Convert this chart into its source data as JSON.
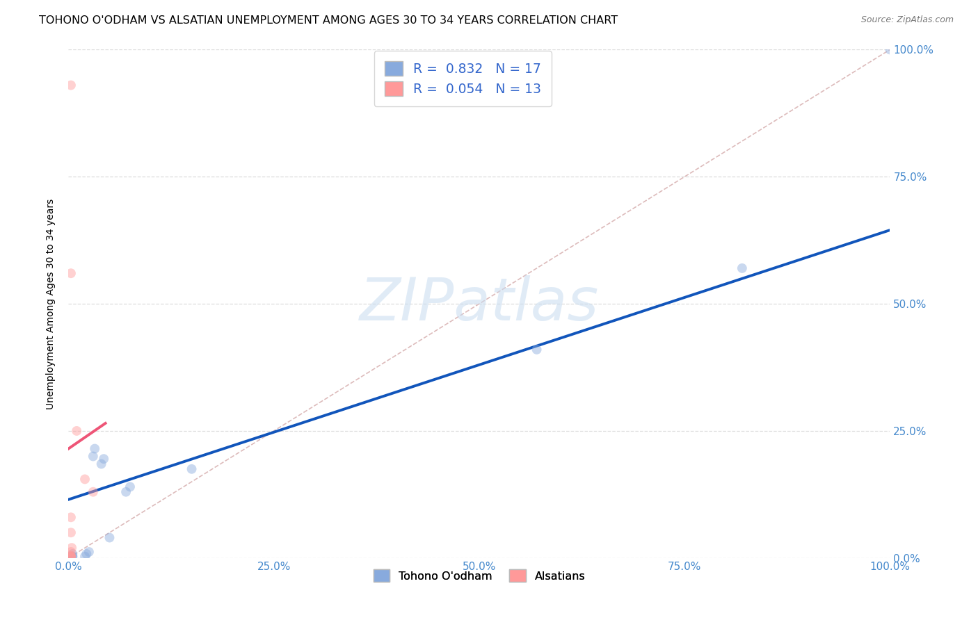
{
  "title": "TOHONO O'ODHAM VS ALSATIAN UNEMPLOYMENT AMONG AGES 30 TO 34 YEARS CORRELATION CHART",
  "source": "Source: ZipAtlas.com",
  "ylabel": "Unemployment Among Ages 30 to 34 years",
  "xlim": [
    0,
    1
  ],
  "ylim": [
    0,
    1
  ],
  "xticks": [
    0.0,
    0.25,
    0.5,
    0.75,
    1.0
  ],
  "yticks": [
    0.0,
    0.25,
    0.5,
    0.75,
    1.0
  ],
  "xticklabels": [
    "0.0%",
    "25.0%",
    "50.0%",
    "75.0%",
    "100.0%"
  ],
  "yticklabels": [
    "0.0%",
    "25.0%",
    "50.0%",
    "75.0%",
    "100.0%"
  ],
  "blue_color": "#88AADD",
  "pink_color": "#FF9999",
  "blue_line_color": "#1155BB",
  "pink_line_color": "#EE5577",
  "diagonal_color": "#DDBBBB",
  "R_blue": "0.832",
  "N_blue": "17",
  "R_pink": "0.054",
  "N_pink": "13",
  "watermark_zip": "ZIP",
  "watermark_atlas": "atlas",
  "blue_scatter_x": [
    0.005,
    0.005,
    0.02,
    0.022,
    0.025,
    0.03,
    0.032,
    0.04,
    0.043,
    0.005,
    0.05,
    0.07,
    0.075,
    0.15,
    0.57,
    0.82,
    1.0
  ],
  "blue_scatter_y": [
    0.003,
    0.008,
    0.003,
    0.008,
    0.012,
    0.2,
    0.215,
    0.185,
    0.195,
    0.003,
    0.04,
    0.13,
    0.14,
    0.175,
    0.41,
    0.57,
    1.0
  ],
  "pink_scatter_x": [
    0.003,
    0.003,
    0.003,
    0.004,
    0.003,
    0.01,
    0.02,
    0.03,
    0.003,
    0.003,
    0.003,
    0.003,
    0.003
  ],
  "pink_scatter_y": [
    0.003,
    0.005,
    0.012,
    0.02,
    0.05,
    0.25,
    0.155,
    0.13,
    0.003,
    0.003,
    0.56,
    0.93,
    0.08
  ],
  "blue_trend_x": [
    0.0,
    1.0
  ],
  "blue_trend_y": [
    0.115,
    0.645
  ],
  "pink_trend_x": [
    0.0,
    0.045
  ],
  "pink_trend_y": [
    0.215,
    0.265
  ],
  "background_color": "#FFFFFF",
  "grid_color": "#DDDDDD",
  "tick_color": "#4488CC",
  "title_fontsize": 11.5,
  "label_fontsize": 10,
  "tick_fontsize": 11,
  "scatter_size": 100,
  "scatter_alpha": 0.45,
  "legend_color": "#3366CC"
}
